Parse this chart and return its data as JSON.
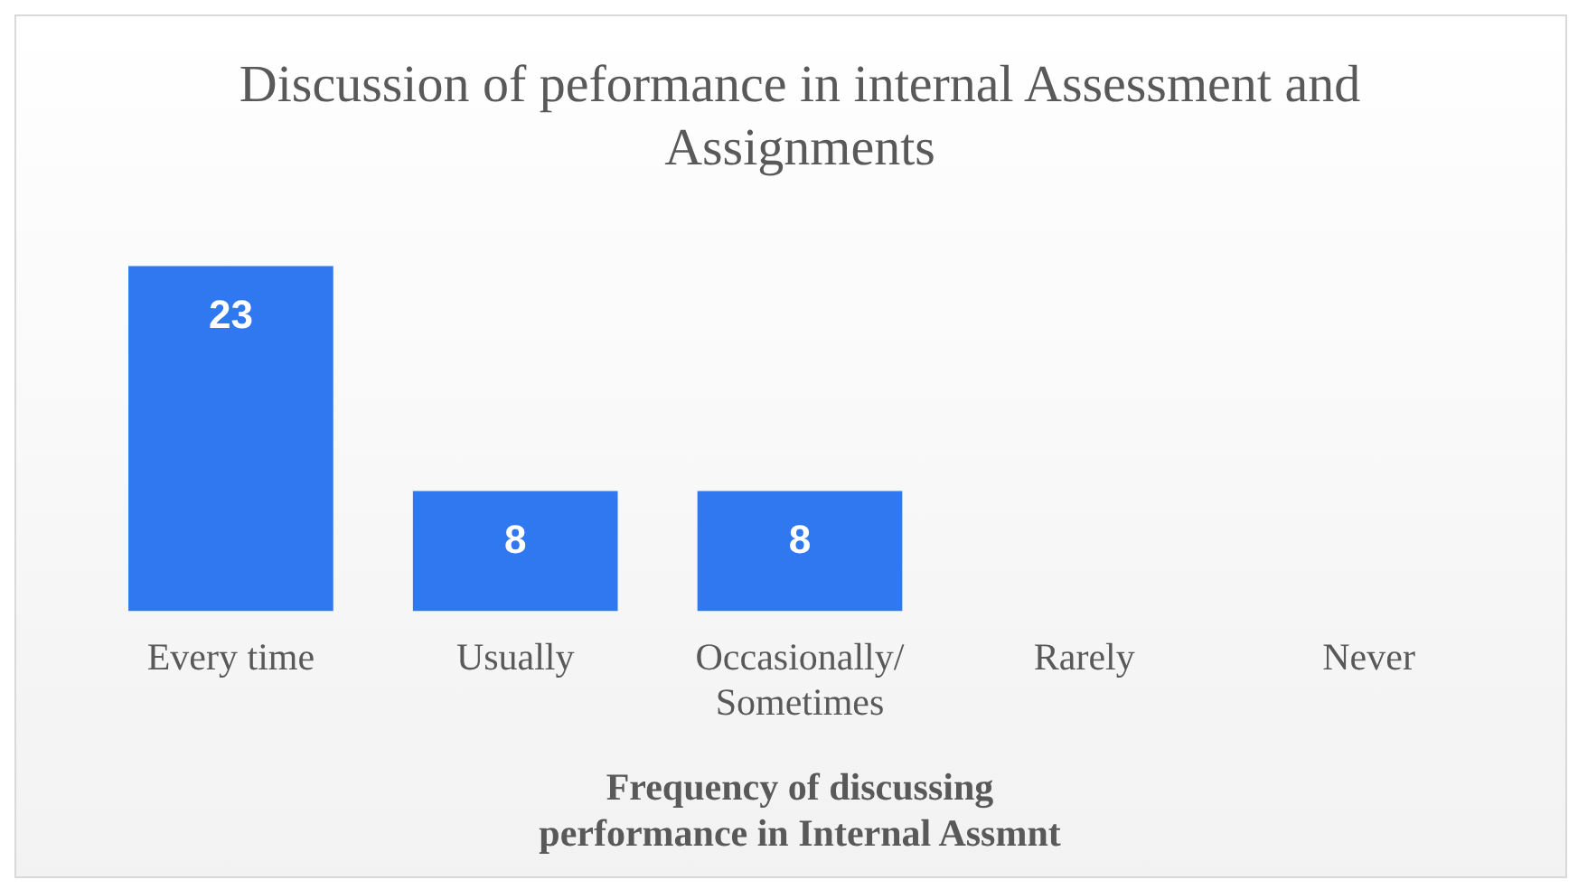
{
  "chart_data": {
    "type": "bar",
    "title": "Discussion of peformance in internal Assessment and Assignments",
    "xlabel": "Frequency of discussing performance in Internal Assmnt",
    "categories": [
      "Every time",
      "Usually",
      "Occasionally/ Sometimes",
      "Rarely",
      "Never"
    ],
    "values": [
      23,
      8,
      8,
      0,
      0
    ],
    "value_labels": [
      "23",
      "8",
      "8",
      null,
      null
    ],
    "color": "#2f78f0",
    "grid": false,
    "legend": false
  }
}
